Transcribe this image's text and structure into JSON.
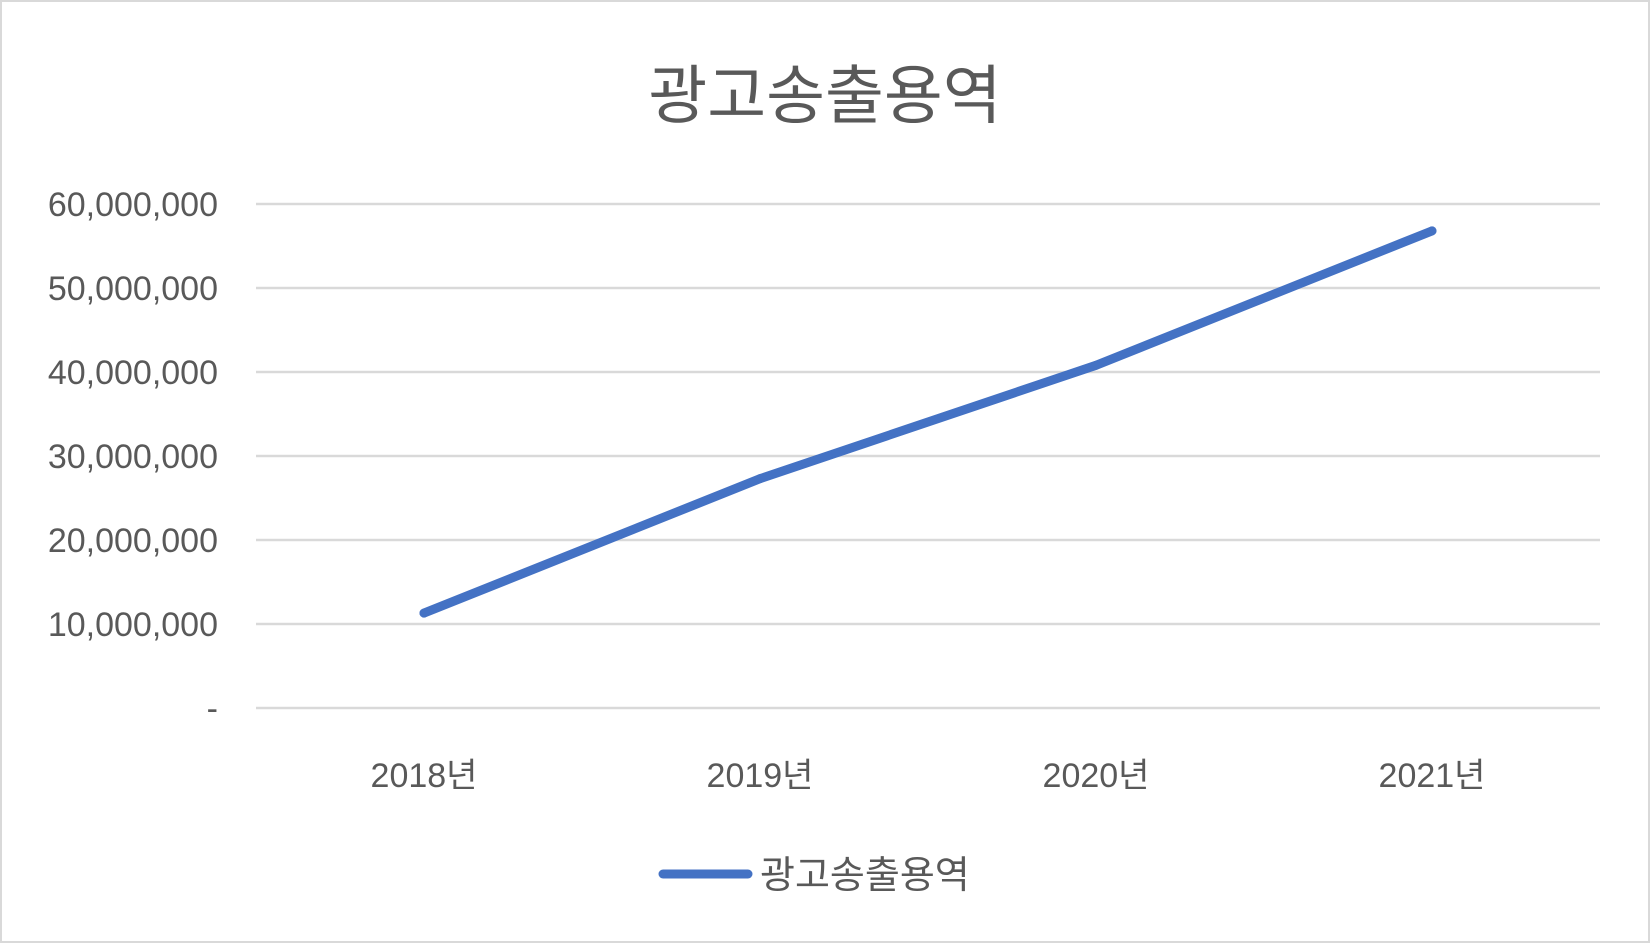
{
  "chart_data": {
    "type": "line",
    "title": "광고송출용역",
    "xlabel": "",
    "ylabel": "",
    "categories": [
      "2018년",
      "2019년",
      "2020년",
      "2021년"
    ],
    "series": [
      {
        "name": "광고송출용역",
        "values": [
          11300000,
          27300000,
          40800000,
          56800000
        ],
        "color": "#4472c4"
      }
    ],
    "ylim": [
      0,
      60000000
    ],
    "yticks": [
      0,
      10000000,
      20000000,
      30000000,
      40000000,
      50000000,
      60000000
    ],
    "ytick_labels": [
      "-",
      "10,000,000",
      "20,000,000",
      "30,000,000",
      "40,000,000",
      "50,000,000",
      "60,000,000"
    ],
    "grid": true,
    "legend_position": "bottom"
  }
}
